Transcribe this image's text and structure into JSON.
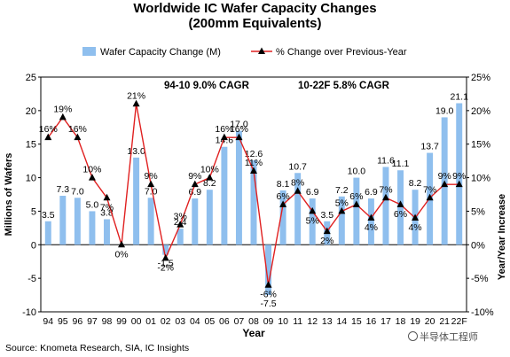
{
  "chart_data": {
    "type": "bar",
    "title": "Worldwide IC Wafer Capacity Changes",
    "subtitle": "(200mm Equivalents)",
    "xlabel": "Year",
    "ylabel": "Millions of Wafers",
    "y2label": "Year/Year Increase",
    "ylim": [
      -10,
      25
    ],
    "y2lim": [
      -10,
      25
    ],
    "yticks": [
      "-10",
      "-5",
      "0",
      "5",
      "10",
      "15",
      "20",
      "25"
    ],
    "y2ticks": [
      "-10%",
      "-5%",
      "0%",
      "5%",
      "10%",
      "15%",
      "20%",
      "25%"
    ],
    "grid": false,
    "legend_position": "top",
    "categories": [
      "94",
      "95",
      "96",
      "97",
      "98",
      "99",
      "00",
      "01",
      "02",
      "03",
      "04",
      "05",
      "06",
      "07",
      "08",
      "09",
      "10",
      "11",
      "12",
      "13",
      "14",
      "15",
      "16",
      "17",
      "18",
      "19",
      "20",
      "21",
      "22F"
    ],
    "series": [
      {
        "name": "Wafer Capacity Change (M)",
        "kind": "bar",
        "color": "#8fbfee",
        "values": [
          3.5,
          7.3,
          7.0,
          5.0,
          3.8,
          0.0,
          13.0,
          7.0,
          -1.5,
          2.4,
          6.9,
          8.2,
          14.6,
          17.0,
          12.6,
          -7.5,
          8.1,
          10.7,
          6.9,
          3.5,
          7.2,
          10.0,
          6.9,
          11.6,
          11.1,
          8.2,
          13.7,
          19.0,
          21.1
        ],
        "labels": [
          "3.5",
          "7.3",
          "7.0",
          "5.0",
          "3.8",
          "",
          "13.0",
          "7.0",
          "-1.5",
          "2.4",
          "6.9",
          "8.2",
          "14.6",
          "17.0",
          "12.6",
          "-7.5",
          "8.1",
          "10.7",
          "6.9",
          "3.5",
          "7.2",
          "10.0",
          "6.9",
          "11.6",
          "11.1",
          "8.2",
          "13.7",
          "19.0",
          "21.1"
        ]
      },
      {
        "name": "% Change over Previous-Year",
        "kind": "line",
        "color": "#e02020",
        "marker_color": "#000000",
        "values": [
          16,
          19,
          16,
          10,
          7,
          0,
          21,
          9,
          -2,
          3,
          9,
          10,
          16,
          16,
          11,
          -6,
          6,
          8,
          5,
          2,
          5,
          6,
          4,
          7,
          6,
          4,
          7,
          9,
          9
        ],
        "labels": [
          "16%",
          "19%",
          "16%",
          "10%",
          "7%",
          "0%",
          "21%",
          "9%",
          "-2%",
          "3%",
          "9%",
          "10%",
          "16%",
          "16%",
          "11%",
          "-6%",
          "6%",
          "8%",
          "5%",
          "2%",
          "5%",
          "6%",
          "4%",
          "7%",
          "6%",
          "4%",
          "7%",
          "9%",
          "9%"
        ]
      }
    ],
    "annotations": [
      "94-10 9.0% CAGR",
      "10-22F 5.8% CAGR"
    ]
  },
  "source": "Source: Knometa Research, SIA, IC Insights",
  "watermark": "半导体工程师"
}
